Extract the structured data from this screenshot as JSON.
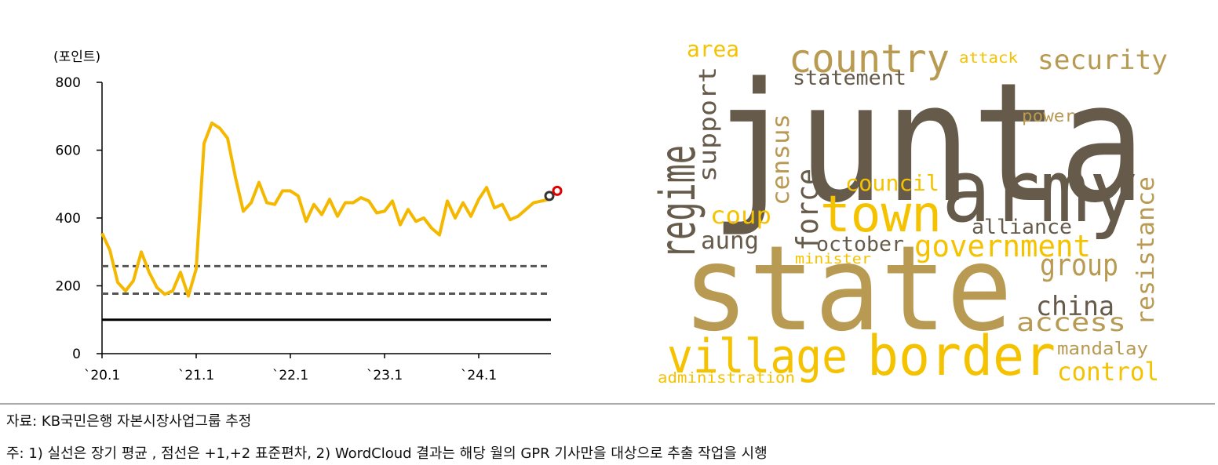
{
  "chart_data": [
    {
      "type": "line",
      "y_label": "(포인트)",
      "categories": [
        "`20.1",
        null,
        null,
        null,
        null,
        null,
        null,
        null,
        null,
        null,
        null,
        null,
        "`21.1",
        null,
        null,
        null,
        null,
        null,
        null,
        null,
        null,
        null,
        null,
        null,
        "`22.1",
        null,
        null,
        null,
        null,
        null,
        null,
        null,
        null,
        null,
        null,
        null,
        "`23.1",
        null,
        null,
        null,
        null,
        null,
        null,
        null,
        null,
        null,
        null,
        null,
        "`24.1",
        null,
        null,
        null,
        null,
        null,
        null,
        null,
        null,
        null,
        null
      ],
      "series": [
        {
          "color": "#f5b800",
          "values": [
            355,
            305,
            210,
            185,
            215,
            300,
            240,
            195,
            175,
            185,
            240,
            170,
            250,
            620,
            680,
            665,
            635,
            520,
            420,
            445,
            505,
            445,
            440,
            480,
            480,
            465,
            390,
            440,
            410,
            455,
            405,
            445,
            445,
            460,
            450,
            415,
            420,
            450,
            380,
            425,
            390,
            400,
            370,
            350,
            450,
            400,
            445,
            405,
            455,
            490,
            430,
            440,
            395,
            405,
            425,
            445,
            450,
            455,
            null
          ]
        },
        {
          "color": "#333333",
          "marker": "circle",
          "values": [
            null,
            null,
            null,
            null,
            null,
            null,
            null,
            null,
            null,
            null,
            null,
            null,
            null,
            null,
            null,
            null,
            null,
            null,
            null,
            null,
            null,
            null,
            null,
            null,
            null,
            null,
            null,
            null,
            null,
            null,
            null,
            null,
            null,
            null,
            null,
            null,
            null,
            null,
            null,
            null,
            null,
            null,
            null,
            null,
            null,
            null,
            null,
            null,
            null,
            null,
            null,
            null,
            null,
            null,
            null,
            null,
            null,
            465,
            null
          ]
        },
        {
          "color": "#e00000",
          "marker": "circle",
          "values": [
            null,
            null,
            null,
            null,
            null,
            null,
            null,
            null,
            null,
            null,
            null,
            null,
            null,
            null,
            null,
            null,
            null,
            null,
            null,
            null,
            null,
            null,
            null,
            null,
            null,
            null,
            null,
            null,
            null,
            null,
            null,
            null,
            null,
            null,
            null,
            null,
            null,
            null,
            null,
            null,
            null,
            null,
            null,
            null,
            null,
            null,
            null,
            null,
            null,
            null,
            null,
            null,
            null,
            null,
            null,
            null,
            null,
            null,
            480
          ]
        }
      ],
      "reference_lines": [
        {
          "value": 100,
          "style": "solid",
          "color": "#000000"
        },
        {
          "value": 258,
          "style": "dashed",
          "color": "#555555"
        },
        {
          "value": 177,
          "style": "dashed",
          "color": "#555555"
        }
      ],
      "ylim": [
        0,
        800
      ],
      "yticks": [
        0,
        200,
        400,
        600,
        800
      ],
      "grid": false
    },
    {
      "type": "wordcloud",
      "words": [
        {
          "text": "junta",
          "color": "#665b4a"
        },
        {
          "text": "army",
          "color": "#665b4a"
        },
        {
          "text": "state",
          "color": "#b89a52"
        },
        {
          "text": "village",
          "color": "#f5c200"
        },
        {
          "text": "border",
          "color": "#f5c200"
        },
        {
          "text": "town",
          "color": "#f5c200"
        },
        {
          "text": "country",
          "color": "#b89a52"
        },
        {
          "text": "security",
          "color": "#b89a52"
        },
        {
          "text": "area",
          "color": "#f5c200"
        },
        {
          "text": "attack",
          "color": "#f5c200"
        },
        {
          "text": "statement",
          "color": "#665b4a"
        },
        {
          "text": "power",
          "color": "#b89a52"
        },
        {
          "text": "council",
          "color": "#f5c200"
        },
        {
          "text": "coup",
          "color": "#f5c200"
        },
        {
          "text": "aung",
          "color": "#665b4a"
        },
        {
          "text": "october",
          "color": "#665b4a"
        },
        {
          "text": "minister",
          "color": "#f5c200"
        },
        {
          "text": "alliance",
          "color": "#665b4a"
        },
        {
          "text": "government",
          "color": "#f5c200"
        },
        {
          "text": "group",
          "color": "#b89a52"
        },
        {
          "text": "china",
          "color": "#665b4a"
        },
        {
          "text": "access",
          "color": "#b89a52"
        },
        {
          "text": "mandalay",
          "color": "#b89a52"
        },
        {
          "text": "control",
          "color": "#f5c200"
        },
        {
          "text": "administration",
          "color": "#f5c200"
        },
        {
          "text": "regime",
          "color": "#665b4a"
        },
        {
          "text": "support",
          "color": "#665b4a"
        },
        {
          "text": "census",
          "color": "#b89a52"
        },
        {
          "text": "force",
          "color": "#665b4a"
        },
        {
          "text": "resistance",
          "color": "#b89a52"
        }
      ]
    }
  ],
  "notes": {
    "source": "자료: KB국민은행 자본시장사업그룹 추정",
    "note": "주: 1) 실선은 장기 평균 , 점선은 +1,+2 표준편차, 2) WordCloud 결과는 해당 월의 GPR 기사만을 대상으로 추출 작업을 시행"
  }
}
